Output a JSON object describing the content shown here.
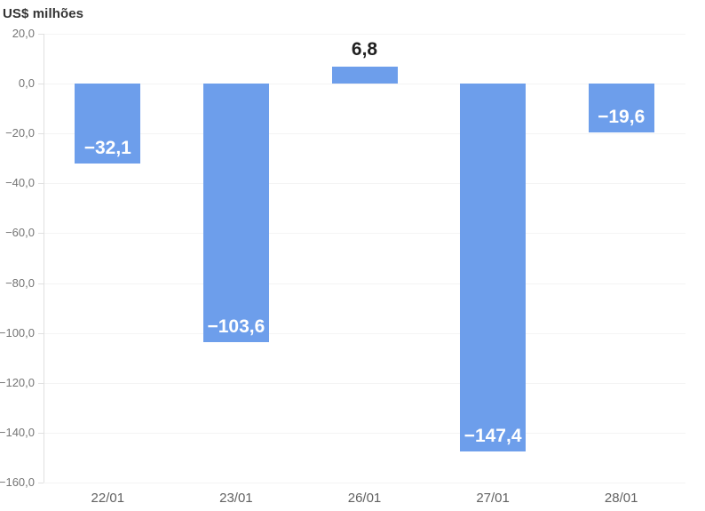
{
  "chart_data": {
    "type": "bar",
    "title": "US$ milhões",
    "categories": [
      "22/01",
      "23/01",
      "26/01",
      "27/01",
      "28/01"
    ],
    "values": [
      -32.1,
      -103.6,
      6.8,
      -147.4,
      -19.6
    ],
    "value_labels": [
      "−32,1",
      "−103,6",
      "6,8",
      "−147,4",
      "−19,6"
    ],
    "ylim": [
      -160,
      20
    ],
    "y_ticks": [
      {
        "value": 20,
        "label": "20,0"
      },
      {
        "value": 0,
        "label": "0,0"
      },
      {
        "value": -20,
        "label": "−20,0"
      },
      {
        "value": -40,
        "label": "−40,0"
      },
      {
        "value": -60,
        "label": "−60,0"
      },
      {
        "value": -80,
        "label": "−80,0"
      },
      {
        "value": -100,
        "label": "−100,0"
      },
      {
        "value": -120,
        "label": "−120,0"
      },
      {
        "value": -140,
        "label": "−140,0"
      },
      {
        "value": -160,
        "label": "−160,0"
      }
    ],
    "grid": true,
    "legend": "none",
    "colors": {
      "bar": "#6d9eeb",
      "label_negative": "#ffffff",
      "label_positive": "#212121",
      "gridline": "#f4f4f4",
      "axis_line": "#e0e0e0",
      "y_tick_label": "#757575",
      "x_tick_label": "#616161",
      "title": "#333333"
    }
  }
}
